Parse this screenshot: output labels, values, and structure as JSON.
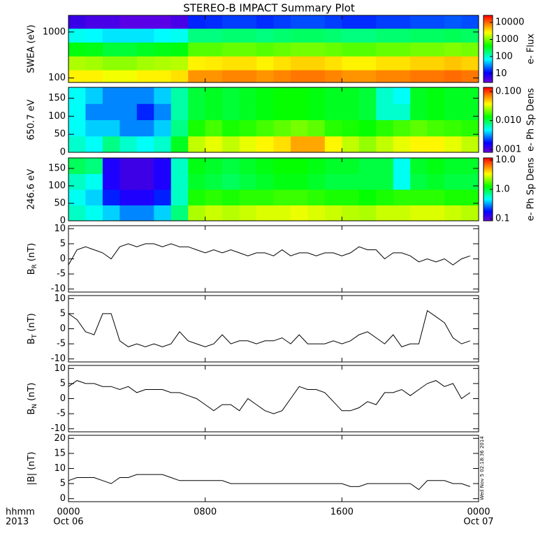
{
  "title": "STEREO-B IMPACT Summary Plot",
  "timestamp": "Wed Nov 5 02:18:36 2014",
  "xlim": [
    0,
    24
  ],
  "xticks": [
    {
      "value": 0,
      "label": "0000"
    },
    {
      "value": 8,
      "label": "0800"
    },
    {
      "value": 16,
      "label": "1600"
    },
    {
      "value": 24,
      "label": "0000"
    }
  ],
  "xtick_dates": [
    {
      "value": 0,
      "label": "Oct 06"
    },
    {
      "value": 24,
      "label": "Oct 07"
    }
  ],
  "x_axis_labels": [
    "hhmm",
    "2013"
  ],
  "time_edges": [
    0,
    1,
    2,
    3,
    4,
    5,
    6,
    7,
    8,
    9,
    10,
    11,
    12,
    13,
    14,
    15,
    16,
    17,
    18,
    19,
    20,
    21,
    22,
    23,
    24
  ],
  "time": [
    0,
    0.5,
    1,
    1.5,
    2,
    2.5,
    3,
    3.5,
    4,
    4.5,
    5,
    5.5,
    6,
    6.5,
    7,
    7.5,
    8,
    8.5,
    9,
    9.5,
    10,
    10.5,
    11,
    11.5,
    12,
    12.5,
    13,
    13.5,
    14,
    14.5,
    15,
    15.5,
    16,
    16.5,
    17,
    17.5,
    18,
    18.5,
    19,
    19.5,
    20,
    20.5,
    21,
    21.5,
    22,
    22.5,
    23,
    23.5
  ],
  "chart_data": [
    {
      "type": "heatmap",
      "ylabel": "SWEA (eV)",
      "ylog": true,
      "ylim": [
        80,
        2300
      ],
      "yticks": [
        100,
        1000
      ],
      "y_edges": [
        80,
        150,
        300,
        600,
        1200,
        2300
      ],
      "z": [
        [
          3000,
          3000,
          2500,
          2500,
          3000,
          3000,
          3500,
          7000,
          7000,
          8000,
          8000,
          7000,
          8000,
          9000,
          9000,
          8000,
          7000,
          7000,
          8000,
          8000,
          9000,
          9000,
          10000,
          9000
        ],
        [
          1500,
          1400,
          1200,
          1200,
          1400,
          1500,
          1600,
          3000,
          3200,
          3500,
          3500,
          3000,
          3500,
          4000,
          4000,
          3500,
          3000,
          3000,
          3500,
          3500,
          4000,
          4000,
          4500,
          4000
        ],
        [
          400,
          380,
          300,
          300,
          350,
          380,
          400,
          800,
          800,
          900,
          900,
          800,
          900,
          1000,
          1000,
          900,
          800,
          800,
          900,
          900,
          1000,
          1000,
          1100,
          1000
        ],
        [
          80,
          70,
          60,
          60,
          60,
          70,
          80,
          180,
          180,
          200,
          200,
          180,
          200,
          220,
          220,
          200,
          180,
          180,
          200,
          200,
          220,
          220,
          240,
          220
        ],
        [
          6,
          5,
          5,
          4,
          4,
          4,
          5,
          15,
          16,
          18,
          18,
          16,
          18,
          20,
          20,
          18,
          16,
          16,
          18,
          18,
          20,
          20,
          22,
          20
        ]
      ],
      "colorbar": {
        "label": "e- Flux",
        "log": true,
        "lim": [
          3,
          26000
        ],
        "ticks": [
          10,
          100,
          1000,
          10000
        ]
      }
    },
    {
      "type": "heatmap",
      "ylabel": "650.7 eV",
      "ylog": false,
      "ylim": [
        0,
        180
      ],
      "yticks": [
        0,
        50,
        100,
        150
      ],
      "y_edges": [
        0,
        45,
        90,
        135,
        180
      ],
      "z": [
        [
          0.006,
          0.005,
          0.008,
          0.006,
          0.005,
          0.006,
          0.012,
          0.03,
          0.035,
          0.03,
          0.035,
          0.04,
          0.045,
          0.06,
          0.06,
          0.04,
          0.03,
          0.025,
          0.03,
          0.035,
          0.04,
          0.04,
          0.035,
          0.03
        ],
        [
          0.005,
          0.004,
          0.004,
          0.003,
          0.003,
          0.004,
          0.008,
          0.015,
          0.018,
          0.015,
          0.016,
          0.018,
          0.02,
          0.022,
          0.02,
          0.016,
          0.015,
          0.014,
          0.016,
          0.018,
          0.02,
          0.018,
          0.017,
          0.016
        ],
        [
          0.005,
          0.003,
          0.003,
          0.003,
          0.002,
          0.003,
          0.007,
          0.011,
          0.012,
          0.011,
          0.012,
          0.013,
          0.014,
          0.014,
          0.013,
          0.012,
          0.012,
          0.011,
          0.006,
          0.006,
          0.012,
          0.013,
          0.012,
          0.012
        ],
        [
          0.005,
          0.004,
          0.003,
          0.003,
          0.003,
          0.004,
          0.007,
          0.011,
          0.012,
          0.011,
          0.012,
          0.013,
          0.014,
          0.014,
          0.013,
          0.012,
          0.012,
          0.011,
          0.006,
          0.005,
          0.012,
          0.013,
          0.012,
          0.012
        ]
      ],
      "colorbar": {
        "label": "e- Ph Sp Dens",
        "log": true,
        "lim": [
          0.0008,
          0.14
        ],
        "ticks": [
          0.001,
          {
            "value": 0.01,
            "label": "0.010"
          },
          {
            "value": 0.1,
            "label": "0.100"
          }
        ]
      }
    },
    {
      "type": "heatmap",
      "ylabel": "246.6 eV",
      "ylog": false,
      "ylim": [
        0,
        180
      ],
      "yticks": [
        0,
        50,
        100,
        150
      ],
      "y_edges": [
        0,
        45,
        90,
        135,
        180
      ],
      "z": [
        [
          0.6,
          0.5,
          0.4,
          0.3,
          0.3,
          0.4,
          0.8,
          2.5,
          2.8,
          2.6,
          2.8,
          3,
          3,
          3.2,
          3,
          2.8,
          2.6,
          2.5,
          2.8,
          2.8,
          3,
          3,
          2.8,
          2.6
        ],
        [
          0.5,
          0.4,
          0.2,
          0.15,
          0.15,
          0.2,
          0.6,
          1.4,
          1.5,
          1.4,
          1.5,
          1.5,
          1.6,
          1.6,
          1.5,
          1.4,
          1.4,
          1.3,
          1.4,
          1.5,
          1.5,
          1.5,
          1.4,
          1.4
        ],
        [
          0.6,
          0.5,
          0.15,
          0.12,
          0.12,
          0.15,
          0.6,
          1.1,
          1.0,
          0.9,
          1.0,
          1.1,
          1.2,
          1.2,
          1.1,
          1.0,
          1.0,
          1.0,
          1.0,
          0.5,
          1.0,
          1.1,
          1.0,
          1.0
        ],
        [
          0.9,
          0.8,
          0.15,
          0.12,
          0.12,
          0.15,
          0.6,
          1.2,
          1.1,
          1.0,
          1.1,
          1.2,
          1.3,
          1.3,
          1.2,
          1.1,
          1.1,
          1.0,
          1.0,
          0.5,
          1.1,
          1.2,
          1.1,
          1.1
        ]
      ],
      "colorbar": {
        "label": "e- Ph Sp Dens",
        "log": true,
        "lim": [
          0.085,
          11.8
        ],
        "ticks": [
          0.1,
          {
            "value": 1,
            "label": "1.0"
          },
          {
            "value": 10,
            "label": "10.0"
          }
        ]
      }
    },
    {
      "type": "line",
      "ylabel": {
        "main": "B",
        "sub": "R",
        "unit": "(nT)"
      },
      "ylim": [
        -11,
        11
      ],
      "yticks": [
        -10,
        -5,
        0,
        5,
        10
      ],
      "color": "#000000",
      "values": [
        -2,
        3,
        4,
        3,
        2,
        0,
        4,
        5,
        4,
        5,
        5,
        4,
        5,
        4,
        4,
        3,
        2,
        3,
        2,
        3,
        2,
        1,
        2,
        2,
        1,
        3,
        1,
        2,
        2,
        1,
        2,
        2,
        1,
        2,
        4,
        3,
        3,
        0,
        2,
        2,
        1,
        -1,
        0,
        -1,
        0,
        -2,
        0,
        1
      ]
    },
    {
      "type": "line",
      "ylabel": {
        "main": "B",
        "sub": "T",
        "unit": "(nT)"
      },
      "ylim": [
        -11,
        11
      ],
      "yticks": [
        -10,
        -5,
        0,
        5,
        10
      ],
      "color": "#000000",
      "values": [
        5,
        3,
        -1,
        -2,
        5,
        5,
        -4,
        -6,
        -5,
        -6,
        -5,
        -6,
        -5,
        -1,
        -4,
        -5,
        -6,
        -5,
        -2,
        -5,
        -4,
        -4,
        -5,
        -4,
        -4,
        -3,
        -5,
        -2,
        -5,
        -5,
        -5,
        -4,
        -5,
        -4,
        -2,
        -1,
        -3,
        -5,
        -2,
        -6,
        -5,
        -5,
        6,
        4,
        2,
        -3,
        -5,
        -4
      ]
    },
    {
      "type": "line",
      "ylabel": {
        "main": "B",
        "sub": "N",
        "unit": "(nT)"
      },
      "ylim": [
        -11,
        11
      ],
      "yticks": [
        -10,
        -5,
        0,
        5,
        10
      ],
      "color": "#000000",
      "values": [
        4,
        6,
        5,
        5,
        4,
        4,
        3,
        4,
        2,
        3,
        3,
        3,
        2,
        2,
        1,
        0,
        -2,
        -4,
        -2,
        -2,
        -4,
        0,
        -2,
        -4,
        -5,
        -4,
        0,
        4,
        3,
        3,
        2,
        -1,
        -4,
        -4,
        -3,
        -1,
        -2,
        2,
        2,
        3,
        1,
        3,
        5,
        6,
        4,
        5,
        0,
        2
      ]
    },
    {
      "type": "line",
      "ylabel": {
        "main": "|B|",
        "unit": "(nT)"
      },
      "ylim": [
        -1,
        21
      ],
      "yticks": [
        0,
        5,
        10,
        15,
        20
      ],
      "color": "#000000",
      "values": [
        6,
        7,
        7,
        7,
        6,
        5,
        7,
        7,
        8,
        8,
        8,
        8,
        7,
        6,
        6,
        6,
        6,
        6,
        6,
        5,
        5,
        5,
        5,
        5,
        5,
        5,
        5,
        5,
        5,
        5,
        5,
        5,
        5,
        4,
        4,
        5,
        5,
        5,
        5,
        5,
        5,
        3,
        6,
        6,
        6,
        5,
        5,
        4
      ]
    }
  ]
}
